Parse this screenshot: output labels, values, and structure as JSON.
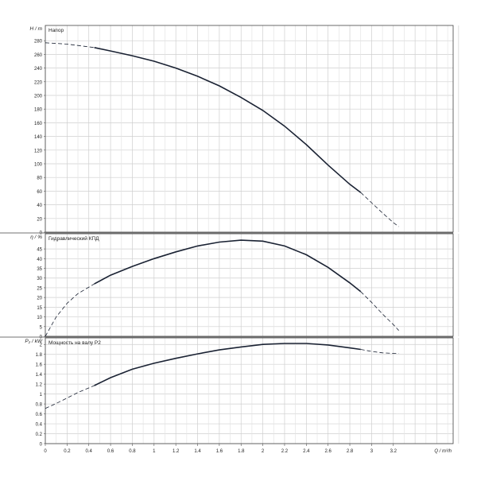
{
  "chart_data": {
    "type": "line",
    "x_axis": {
      "label": "Q / m³/h",
      "min": 0,
      "max": 3.75,
      "ticks": [
        0,
        0.2,
        0.4,
        0.6,
        0.8,
        1,
        1.2,
        1.4,
        1.6,
        1.8,
        2,
        2.2,
        2.4,
        2.6,
        2.8,
        3,
        3.2
      ],
      "tick_labels": [
        "0",
        "0.2",
        "0.4",
        "0.6",
        "0.8",
        "1",
        "1.2",
        "1.4",
        "1.6",
        "1.8",
        "2",
        "2.2",
        "2.4",
        "2.6",
        "2.8",
        "3",
        "3.2"
      ]
    },
    "panels": [
      {
        "id": "head",
        "ylabel": "H / m",
        "title": "Напор",
        "ylim": [
          0,
          300
        ],
        "ticks": [
          0,
          20,
          40,
          60,
          80,
          100,
          120,
          140,
          160,
          180,
          200,
          220,
          240,
          260,
          280
        ],
        "tick_labels": [
          "0",
          "20",
          "40",
          "60",
          "80",
          "100",
          "120",
          "140",
          "160",
          "180",
          "200",
          "220",
          "240",
          "260",
          "280"
        ],
        "series": [
          {
            "style": "solid",
            "x": [
              0.45,
              0.6,
              0.8,
              1.0,
              1.2,
              1.4,
              1.6,
              1.8,
              2.0,
              2.2,
              2.4,
              2.6,
              2.8,
              2.9
            ],
            "y": [
              270,
              265,
              258,
              250,
              240,
              228,
              214,
              197,
              178,
              155,
              128,
              98,
              70,
              58
            ]
          },
          {
            "style": "dashed",
            "x": [
              0.0,
              0.1,
              0.2,
              0.3,
              0.45
            ],
            "y": [
              277,
              276,
              275,
              273,
              270
            ]
          },
          {
            "style": "dashed",
            "x": [
              2.9,
              3.0,
              3.1,
              3.2,
              3.25
            ],
            "y": [
              58,
              43,
              28,
              14,
              8
            ]
          }
        ]
      },
      {
        "id": "efficiency",
        "ylabel": "η / %",
        "title": "Гидравлический КПД",
        "ylim": [
          0,
          52
        ],
        "ticks": [
          0,
          5,
          10,
          15,
          20,
          25,
          30,
          35,
          40,
          45
        ],
        "tick_labels": [
          "0",
          "5",
          "10",
          "15",
          "20",
          "25",
          "30",
          "35",
          "40",
          "45"
        ],
        "series": [
          {
            "style": "solid",
            "x": [
              0.45,
              0.6,
              0.8,
              1.0,
              1.2,
              1.4,
              1.6,
              1.8,
              2.0,
              2.2,
              2.4,
              2.6,
              2.8,
              2.9
            ],
            "y": [
              27,
              31.5,
              36,
              40,
              43.5,
              46.5,
              48.5,
              49.5,
              49,
              46.5,
              42,
              35.5,
              27.5,
              23
            ]
          },
          {
            "style": "dashed",
            "x": [
              0.0,
              0.1,
              0.2,
              0.3,
              0.45
            ],
            "y": [
              0,
              10,
              17,
              22,
              27
            ]
          },
          {
            "style": "dashed",
            "x": [
              2.9,
              3.0,
              3.1,
              3.2,
              3.25
            ],
            "y": [
              23,
              17.5,
              11.5,
              6,
              3
            ]
          }
        ]
      },
      {
        "id": "power",
        "ylabel": "P₂ / kW",
        "title": "Мощность на валу P2",
        "ylim": [
          0,
          2.1
        ],
        "ticks": [
          0,
          0.2,
          0.4,
          0.6,
          0.8,
          1,
          1.2,
          1.4,
          1.6,
          1.8,
          2
        ],
        "tick_labels": [
          "0",
          "0.2",
          "0.4",
          "0.6",
          "0.8",
          "1",
          "1.2",
          "1.4",
          "1.6",
          "1.8",
          "2"
        ],
        "series": [
          {
            "style": "solid",
            "x": [
              0.45,
              0.6,
              0.8,
              1.0,
              1.2,
              1.4,
              1.6,
              1.8,
              2.0,
              2.2,
              2.4,
              2.6,
              2.8,
              2.9
            ],
            "y": [
              1.17,
              1.33,
              1.5,
              1.62,
              1.72,
              1.81,
              1.89,
              1.95,
              2.0,
              2.02,
              2.02,
              1.99,
              1.93,
              1.9
            ]
          },
          {
            "style": "dashed",
            "x": [
              0.0,
              0.1,
              0.2,
              0.3,
              0.45
            ],
            "y": [
              0.71,
              0.81,
              0.92,
              1.03,
              1.17
            ]
          },
          {
            "style": "dashed",
            "x": [
              2.9,
              3.0,
              3.1,
              3.2,
              3.25
            ],
            "y": [
              1.9,
              1.86,
              1.83,
              1.82,
              1.82
            ]
          }
        ]
      }
    ],
    "grid": true,
    "legend": "none"
  }
}
